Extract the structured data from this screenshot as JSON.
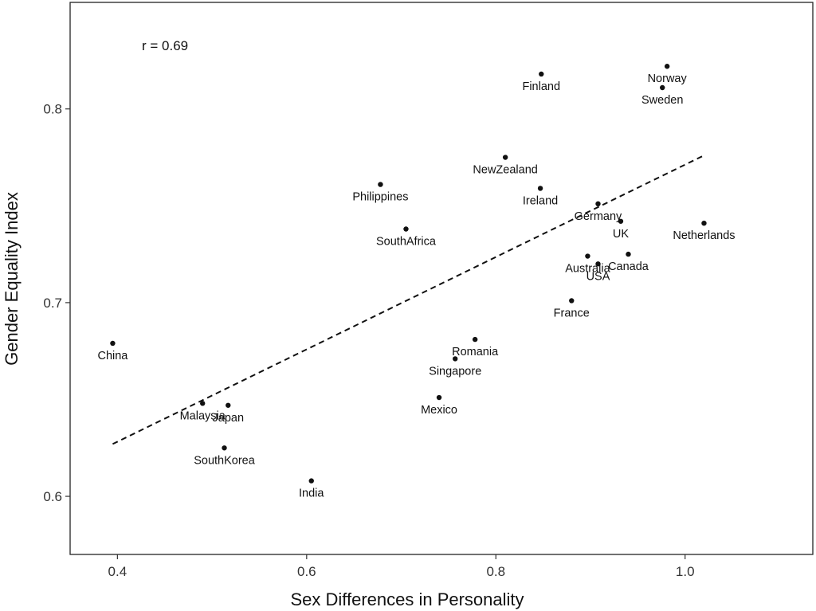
{
  "chart_data": {
    "type": "scatter",
    "xlabel": "Sex Differences in Personality",
    "ylabel": "Gender Equality Index",
    "xlim": [
      0.35,
      1.135
    ],
    "ylim": [
      0.57,
      0.855
    ],
    "xticks": [
      0.4,
      0.6,
      0.8,
      1.0
    ],
    "xtick_labels": [
      "0.4",
      "0.6",
      "0.8",
      "1.0"
    ],
    "yticks": [
      0.6,
      0.7,
      0.8
    ],
    "ytick_labels": [
      "0.6",
      "0.7",
      "0.8"
    ],
    "grid": false,
    "annotation": "r = 0.69",
    "trendline": {
      "style": "dashed",
      "x": [
        0.395,
        1.02
      ],
      "y": [
        0.627,
        0.776
      ]
    },
    "points": [
      {
        "label": "China",
        "x": 0.395,
        "y": 0.679
      },
      {
        "label": "Malaysia",
        "x": 0.49,
        "y": 0.648
      },
      {
        "label": "Japan",
        "x": 0.517,
        "y": 0.647
      },
      {
        "label": "SouthKorea",
        "x": 0.513,
        "y": 0.625
      },
      {
        "label": "India",
        "x": 0.605,
        "y": 0.608
      },
      {
        "label": "Philippines",
        "x": 0.678,
        "y": 0.761
      },
      {
        "label": "SouthAfrica",
        "x": 0.705,
        "y": 0.738
      },
      {
        "label": "Mexico",
        "x": 0.74,
        "y": 0.651
      },
      {
        "label": "Singapore",
        "x": 0.757,
        "y": 0.671
      },
      {
        "label": "Romania",
        "x": 0.778,
        "y": 0.681
      },
      {
        "label": "NewZealand",
        "x": 0.81,
        "y": 0.775
      },
      {
        "label": "Ireland",
        "x": 0.847,
        "y": 0.759
      },
      {
        "label": "Finland",
        "x": 0.848,
        "y": 0.818
      },
      {
        "label": "France",
        "x": 0.88,
        "y": 0.701
      },
      {
        "label": "Australia",
        "x": 0.897,
        "y": 0.724
      },
      {
        "label": "USA",
        "x": 0.908,
        "y": 0.72
      },
      {
        "label": "Germany",
        "x": 0.908,
        "y": 0.751
      },
      {
        "label": "UK",
        "x": 0.932,
        "y": 0.742
      },
      {
        "label": "Canada",
        "x": 0.94,
        "y": 0.725
      },
      {
        "label": "Sweden",
        "x": 0.976,
        "y": 0.811
      },
      {
        "label": "Norway",
        "x": 0.981,
        "y": 0.822
      },
      {
        "label": "Netherlands",
        "x": 1.02,
        "y": 0.741
      }
    ]
  }
}
